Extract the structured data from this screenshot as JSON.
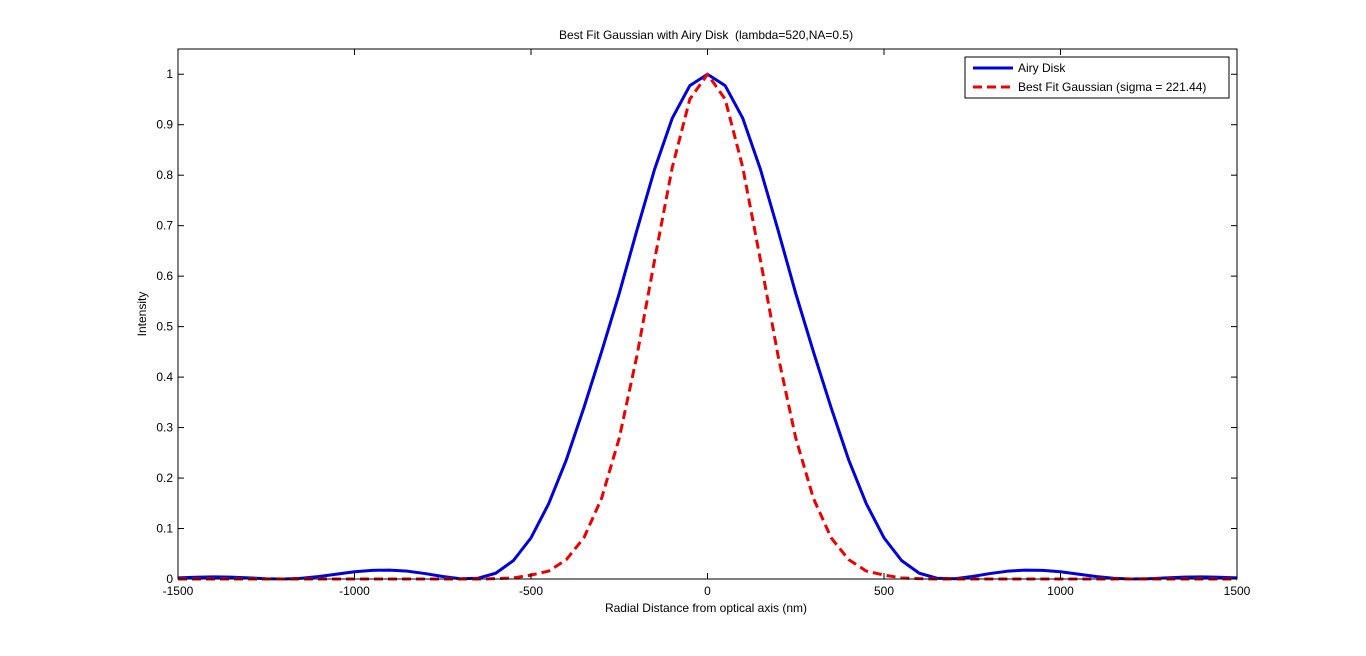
{
  "chart_data": {
    "type": "line",
    "title": "Best Fit Gaussian with Airy Disk  (lambda=520,NA=0.5)",
    "xlabel": "Radial Distance from optical axis (nm)",
    "ylabel": "Intensity",
    "xlim": [
      -1500,
      1500
    ],
    "ylim": [
      0,
      1.05
    ],
    "xticks": [
      -1500,
      -1000,
      -500,
      0,
      500,
      1000,
      1500
    ],
    "xtick_labels": [
      "-1500",
      "-1000",
      "-500",
      "0",
      "500",
      "1000",
      "1500"
    ],
    "yticks": [
      0,
      0.1,
      0.2,
      0.3,
      0.4,
      0.5,
      0.6,
      0.7,
      0.8,
      0.9,
      1
    ],
    "ytick_labels": [
      "0",
      "0.1",
      "0.2",
      "0.3",
      "0.4",
      "0.5",
      "0.6",
      "0.7",
      "0.8",
      "0.9",
      "1"
    ],
    "grid": false,
    "legend_position": "top-right",
    "x": [
      -1500,
      -1450,
      -1400,
      -1350,
      -1300,
      -1250,
      -1200,
      -1150,
      -1100,
      -1050,
      -1000,
      -950,
      -900,
      -850,
      -800,
      -750,
      -700,
      -650,
      -600,
      -550,
      -500,
      -450,
      -400,
      -350,
      -300,
      -250,
      -200,
      -150,
      -100,
      -50,
      0,
      50,
      100,
      150,
      200,
      250,
      300,
      350,
      400,
      450,
      500,
      550,
      600,
      650,
      700,
      750,
      800,
      850,
      900,
      950,
      1000,
      1050,
      1100,
      1150,
      1200,
      1250,
      1300,
      1350,
      1400,
      1450,
      1500
    ],
    "series": [
      {
        "name": "Airy Disk",
        "color": "#0000dd",
        "style": "solid",
        "values": [
          0.0023,
          0.0035,
          0.0042,
          0.0037,
          0.0022,
          0.0006,
          0.0,
          0.0014,
          0.0049,
          0.0097,
          0.0143,
          0.0172,
          0.0177,
          0.0155,
          0.0108,
          0.0049,
          0.0005,
          0.0015,
          0.0114,
          0.0364,
          0.0815,
          0.149,
          0.236,
          0.3398,
          0.4503,
          0.5658,
          0.6908,
          0.8115,
          0.9126,
          0.9775,
          1.0,
          0.9775,
          0.9126,
          0.8115,
          0.6908,
          0.5658,
          0.4503,
          0.3398,
          0.236,
          0.149,
          0.0815,
          0.0364,
          0.0114,
          0.0015,
          0.0005,
          0.0049,
          0.0108,
          0.0155,
          0.0177,
          0.0172,
          0.0143,
          0.0097,
          0.0049,
          0.0014,
          0.0,
          0.0006,
          0.0022,
          0.0037,
          0.0042,
          0.0035,
          0.0023
        ]
      },
      {
        "name": "Best Fit Gaussian (sigma = 221.44)",
        "color": "#ee0000",
        "style": "dashed",
        "values": [
          0.0,
          0.0,
          0.0,
          0.0,
          0.0,
          0.0,
          0.0,
          0.0,
          0.0,
          0.0,
          0.0,
          0.0,
          0.0,
          0.0,
          0.0,
          0.0,
          0.0,
          0.0,
          0.0007,
          0.0021,
          0.0077,
          0.0157,
          0.0383,
          0.0819,
          0.1599,
          0.2792,
          0.4419,
          0.6316,
          0.8149,
          0.9507,
          1.0,
          0.9507,
          0.8149,
          0.6316,
          0.4419,
          0.2792,
          0.1599,
          0.0819,
          0.0383,
          0.0157,
          0.0077,
          0.0021,
          0.0007,
          0.0,
          0.0,
          0.0,
          0.0,
          0.0,
          0.0,
          0.0,
          0.0,
          0.0,
          0.0,
          0.0,
          0.0,
          0.0,
          0.0,
          0.0,
          0.0,
          0.0,
          0.0
        ]
      }
    ]
  }
}
